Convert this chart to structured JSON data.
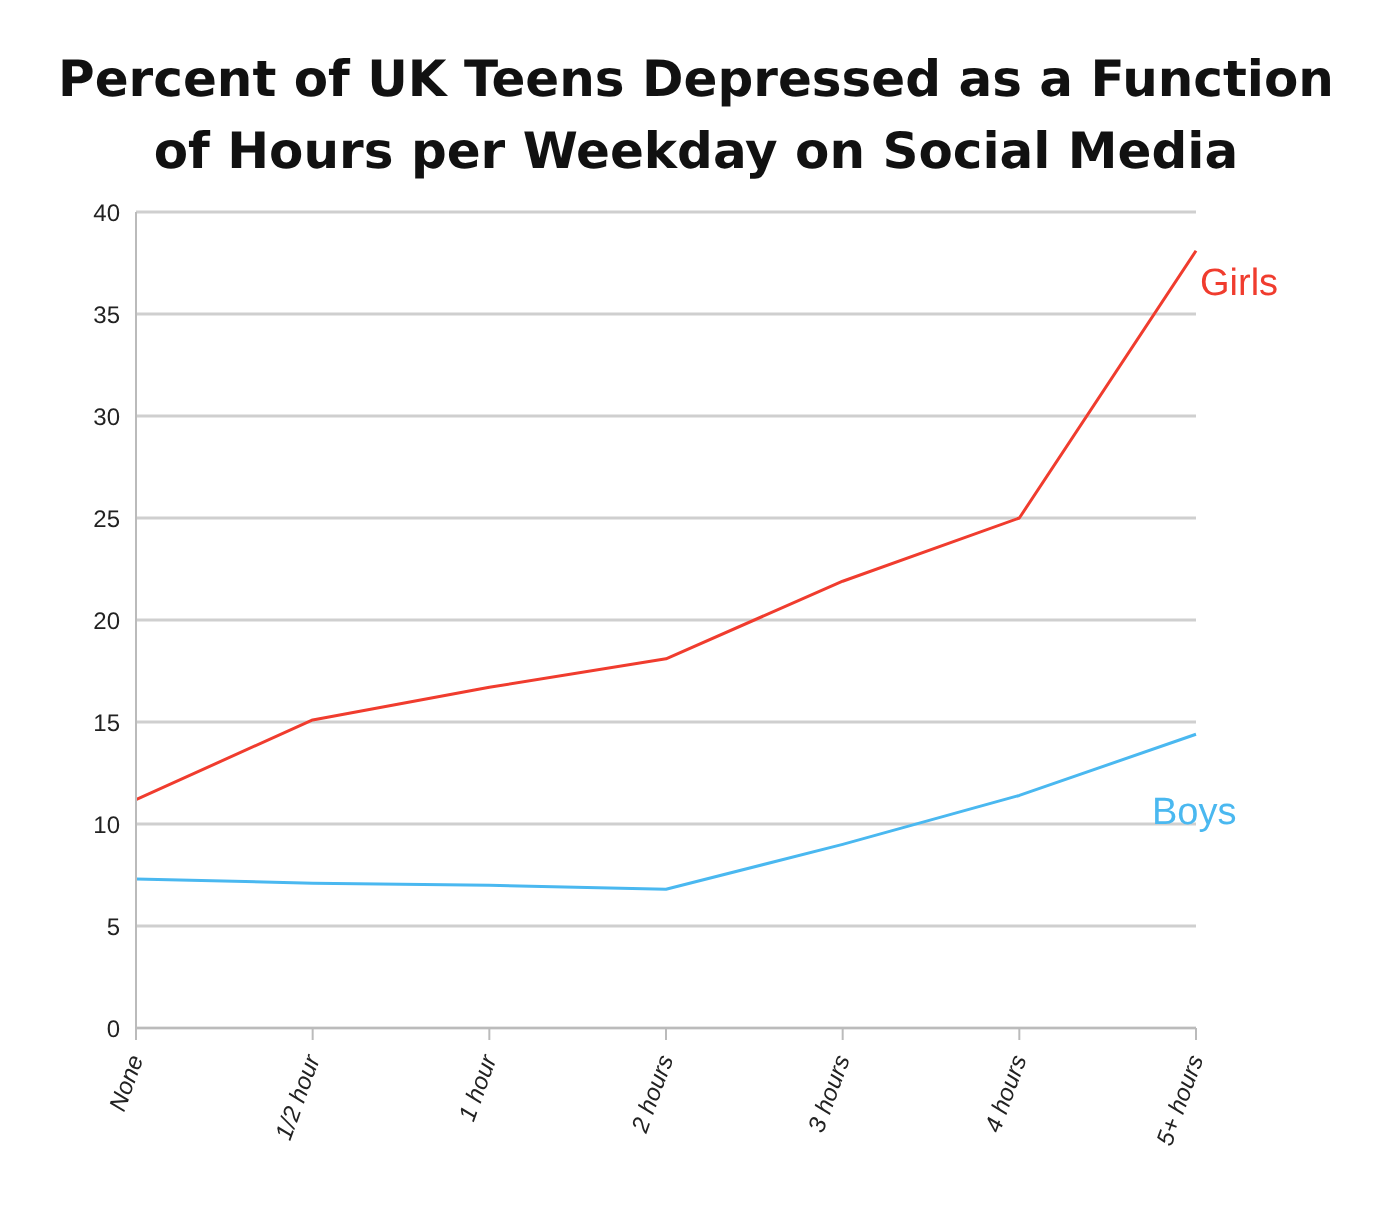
{
  "chart_data": {
    "type": "line",
    "title": "Percent of UK Teens Depressed as a Function of Hours per Weekday on Social Media",
    "categories": [
      "None",
      "1/2 hour",
      "1 hour",
      "2 hours",
      "3 hours",
      "4 hours",
      "5+ hours"
    ],
    "series": [
      {
        "name": "Girls",
        "color": "#f03c2e",
        "values": [
          11.2,
          15.1,
          16.7,
          18.1,
          21.9,
          25.0,
          38.1
        ]
      },
      {
        "name": "Boys",
        "color": "#4ab8f0",
        "values": [
          7.3,
          7.1,
          7.0,
          6.8,
          9.0,
          11.4,
          14.4
        ]
      }
    ],
    "ylim": [
      0,
      40
    ],
    "yticks": [
      0,
      5,
      10,
      15,
      20,
      25,
      30,
      35,
      40
    ],
    "grid": "y",
    "legend": false,
    "marker": "none",
    "line_style": "solid"
  }
}
